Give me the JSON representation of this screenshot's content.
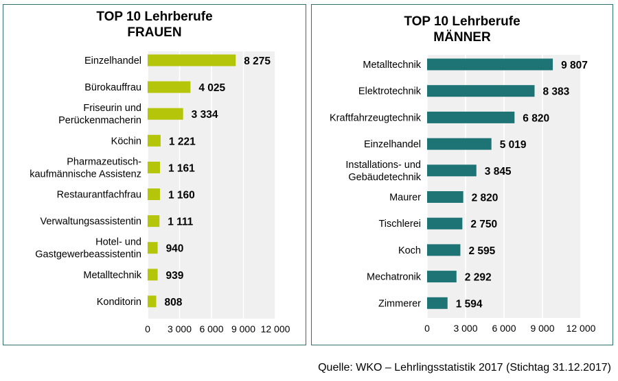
{
  "chart_data": [
    {
      "type": "bar",
      "orientation": "horizontal",
      "title": "TOP 10 Lehrberufe\nFRAUEN",
      "categories": [
        "Einzelhandel",
        "Bürokauffrau",
        "Friseurin und\nPerückenmacherin",
        "Köchin",
        "Pharmazeutisch-\nkaufmännische Assistenz",
        "Restaurantfachfrau",
        "Verwaltungsassistentin",
        "Hotel- und\nGastgewerbeassistentin",
        "Metalltechnik",
        "Konditorin"
      ],
      "values": [
        8275,
        4025,
        3334,
        1221,
        1161,
        1160,
        1111,
        940,
        939,
        808
      ],
      "value_labels": [
        "8 275",
        "4 025",
        "3 334",
        "1 221",
        "1 161",
        "1 160",
        "1 111",
        "940",
        "939",
        "808"
      ],
      "xlim": [
        0,
        12000
      ],
      "xticks": [
        0,
        3000,
        6000,
        9000,
        12000
      ],
      "xtick_labels": [
        "0",
        "3 000",
        "6 000",
        "9 000",
        "12 000"
      ],
      "color": "#b5c50a",
      "plot_background": "#f0f0f0",
      "grid": "vertical"
    },
    {
      "type": "bar",
      "orientation": "horizontal",
      "title": "TOP 10 Lehrberufe\nMÄNNER",
      "categories": [
        "Metalltechnik",
        "Elektrotechnik",
        "Kraftfahrzeugtechnik",
        "Einzelhandel",
        "Installations- und\nGebäudetechnik",
        "Maurer",
        "Tischlerei",
        "Koch",
        "Mechatronik",
        "Zimmerer"
      ],
      "values": [
        9807,
        8383,
        6820,
        5019,
        3845,
        2820,
        2750,
        2595,
        2292,
        1594
      ],
      "value_labels": [
        "9 807",
        "8 383",
        "6 820",
        "5 019",
        "3 845",
        "2 820",
        "2 750",
        "2 595",
        "2 292",
        "1 594"
      ],
      "xlim": [
        0,
        12000
      ],
      "xticks": [
        0,
        3000,
        6000,
        9000,
        12000
      ],
      "xtick_labels": [
        "0",
        "3 000",
        "6 000",
        "9 000",
        "12 000"
      ],
      "color": "#1e7474",
      "plot_background": "#f0f0f0",
      "grid": "vertical"
    }
  ],
  "footer": {
    "source": "Quelle:  WKO – Lehrlingsstatistik  2017  (Stichtag 31.12.2017)"
  }
}
